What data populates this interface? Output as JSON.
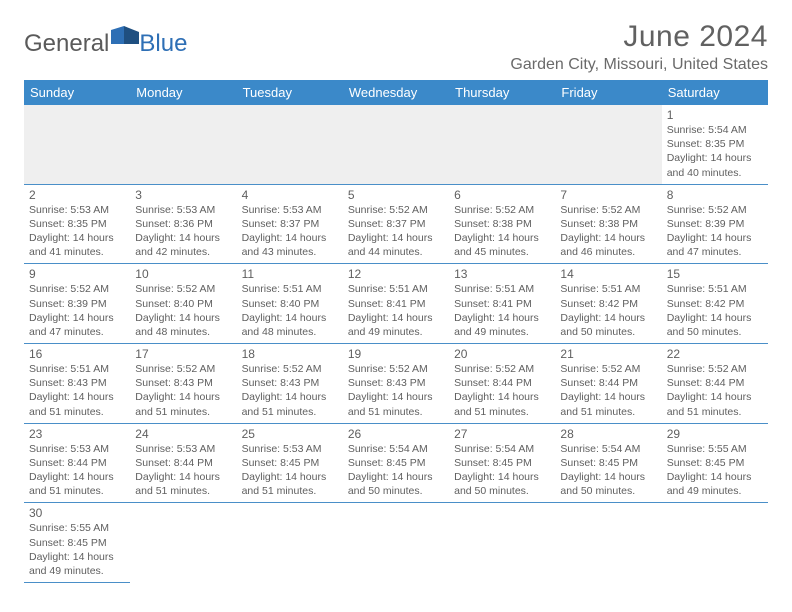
{
  "logo": {
    "text1": "General",
    "text2": "Blue"
  },
  "title": "June 2024",
  "subtitle": "Garden City, Missouri, United States",
  "colors": {
    "header_bg": "#3b89c9",
    "header_text": "#ffffff",
    "cell_border": "#4a8fc8",
    "text_gray": "#5f5f5f",
    "logo_gray": "#5a5a5a",
    "logo_blue": "#2e6fb5",
    "blank_bg": "#efefef"
  },
  "weekdays": [
    "Sunday",
    "Monday",
    "Tuesday",
    "Wednesday",
    "Thursday",
    "Friday",
    "Saturday"
  ],
  "cells": [
    [
      null,
      null,
      null,
      null,
      null,
      null,
      {
        "n": "1",
        "sr": "5:54 AM",
        "ss": "8:35 PM",
        "dl": "14 hours and 40 minutes."
      }
    ],
    [
      {
        "n": "2",
        "sr": "5:53 AM",
        "ss": "8:35 PM",
        "dl": "14 hours and 41 minutes."
      },
      {
        "n": "3",
        "sr": "5:53 AM",
        "ss": "8:36 PM",
        "dl": "14 hours and 42 minutes."
      },
      {
        "n": "4",
        "sr": "5:53 AM",
        "ss": "8:37 PM",
        "dl": "14 hours and 43 minutes."
      },
      {
        "n": "5",
        "sr": "5:52 AM",
        "ss": "8:37 PM",
        "dl": "14 hours and 44 minutes."
      },
      {
        "n": "6",
        "sr": "5:52 AM",
        "ss": "8:38 PM",
        "dl": "14 hours and 45 minutes."
      },
      {
        "n": "7",
        "sr": "5:52 AM",
        "ss": "8:38 PM",
        "dl": "14 hours and 46 minutes."
      },
      {
        "n": "8",
        "sr": "5:52 AM",
        "ss": "8:39 PM",
        "dl": "14 hours and 47 minutes."
      }
    ],
    [
      {
        "n": "9",
        "sr": "5:52 AM",
        "ss": "8:39 PM",
        "dl": "14 hours and 47 minutes."
      },
      {
        "n": "10",
        "sr": "5:52 AM",
        "ss": "8:40 PM",
        "dl": "14 hours and 48 minutes."
      },
      {
        "n": "11",
        "sr": "5:51 AM",
        "ss": "8:40 PM",
        "dl": "14 hours and 48 minutes."
      },
      {
        "n": "12",
        "sr": "5:51 AM",
        "ss": "8:41 PM",
        "dl": "14 hours and 49 minutes."
      },
      {
        "n": "13",
        "sr": "5:51 AM",
        "ss": "8:41 PM",
        "dl": "14 hours and 49 minutes."
      },
      {
        "n": "14",
        "sr": "5:51 AM",
        "ss": "8:42 PM",
        "dl": "14 hours and 50 minutes."
      },
      {
        "n": "15",
        "sr": "5:51 AM",
        "ss": "8:42 PM",
        "dl": "14 hours and 50 minutes."
      }
    ],
    [
      {
        "n": "16",
        "sr": "5:51 AM",
        "ss": "8:43 PM",
        "dl": "14 hours and 51 minutes."
      },
      {
        "n": "17",
        "sr": "5:52 AM",
        "ss": "8:43 PM",
        "dl": "14 hours and 51 minutes."
      },
      {
        "n": "18",
        "sr": "5:52 AM",
        "ss": "8:43 PM",
        "dl": "14 hours and 51 minutes."
      },
      {
        "n": "19",
        "sr": "5:52 AM",
        "ss": "8:43 PM",
        "dl": "14 hours and 51 minutes."
      },
      {
        "n": "20",
        "sr": "5:52 AM",
        "ss": "8:44 PM",
        "dl": "14 hours and 51 minutes."
      },
      {
        "n": "21",
        "sr": "5:52 AM",
        "ss": "8:44 PM",
        "dl": "14 hours and 51 minutes."
      },
      {
        "n": "22",
        "sr": "5:52 AM",
        "ss": "8:44 PM",
        "dl": "14 hours and 51 minutes."
      }
    ],
    [
      {
        "n": "23",
        "sr": "5:53 AM",
        "ss": "8:44 PM",
        "dl": "14 hours and 51 minutes."
      },
      {
        "n": "24",
        "sr": "5:53 AM",
        "ss": "8:44 PM",
        "dl": "14 hours and 51 minutes."
      },
      {
        "n": "25",
        "sr": "5:53 AM",
        "ss": "8:45 PM",
        "dl": "14 hours and 51 minutes."
      },
      {
        "n": "26",
        "sr": "5:54 AM",
        "ss": "8:45 PM",
        "dl": "14 hours and 50 minutes."
      },
      {
        "n": "27",
        "sr": "5:54 AM",
        "ss": "8:45 PM",
        "dl": "14 hours and 50 minutes."
      },
      {
        "n": "28",
        "sr": "5:54 AM",
        "ss": "8:45 PM",
        "dl": "14 hours and 50 minutes."
      },
      {
        "n": "29",
        "sr": "5:55 AM",
        "ss": "8:45 PM",
        "dl": "14 hours and 49 minutes."
      }
    ],
    [
      {
        "n": "30",
        "sr": "5:55 AM",
        "ss": "8:45 PM",
        "dl": "14 hours and 49 minutes."
      },
      null,
      null,
      null,
      null,
      null,
      null
    ]
  ],
  "labels": {
    "sunrise": "Sunrise:",
    "sunset": "Sunset:",
    "daylight": "Daylight:"
  }
}
